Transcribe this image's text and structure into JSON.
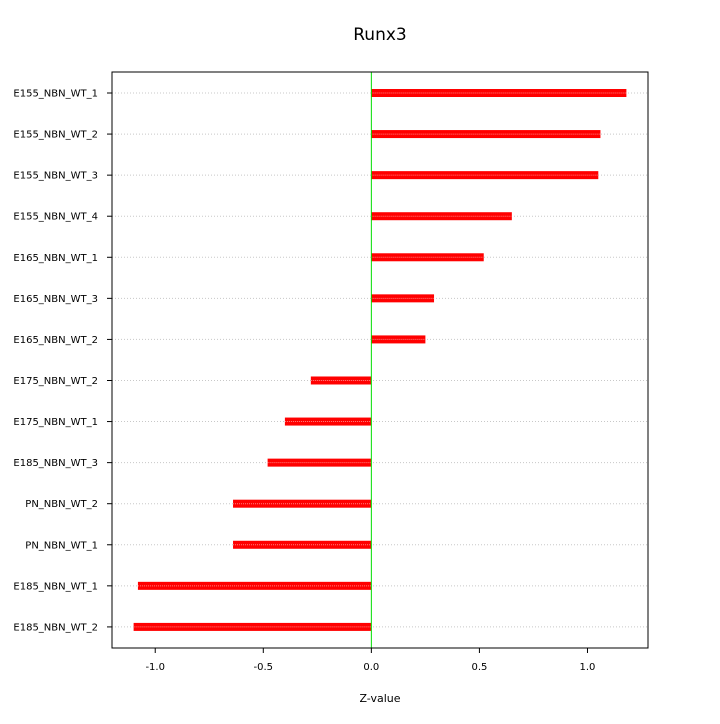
{
  "chart_data": {
    "type": "bar",
    "orientation": "horizontal",
    "title": "Runx3",
    "xlabel": "Z-value",
    "ylabel": "",
    "xlim": [
      -1.2,
      1.28
    ],
    "x_ticks": [
      -1.0,
      -0.5,
      0.0,
      0.5,
      1.0
    ],
    "x_tick_labels": [
      "-1.0",
      "-0.5",
      "0.0",
      "0.5",
      "1.0"
    ],
    "categories": [
      "E155_NBN_WT_1",
      "E155_NBN_WT_2",
      "E155_NBN_WT_3",
      "E155_NBN_WT_4",
      "E165_NBN_WT_1",
      "E165_NBN_WT_3",
      "E165_NBN_WT_2",
      "E175_NBN_WT_2",
      "E175_NBN_WT_1",
      "E185_NBN_WT_3",
      "PN_NBN_WT_2",
      "PN_NBN_WT_1",
      "E185_NBN_WT_1",
      "E185_NBN_WT_2"
    ],
    "values": [
      1.18,
      1.06,
      1.05,
      0.65,
      0.52,
      0.29,
      0.25,
      -0.28,
      -0.4,
      -0.48,
      -0.64,
      -0.64,
      -1.08,
      -1.1
    ],
    "grid": "horizontal dotted",
    "legend": "none",
    "colors": {
      "bar": "#ff0000",
      "bar_inner": "#ff8080",
      "zero_line": "#00dd00",
      "grid": "#c8c8c8",
      "axis": "#000000"
    }
  }
}
